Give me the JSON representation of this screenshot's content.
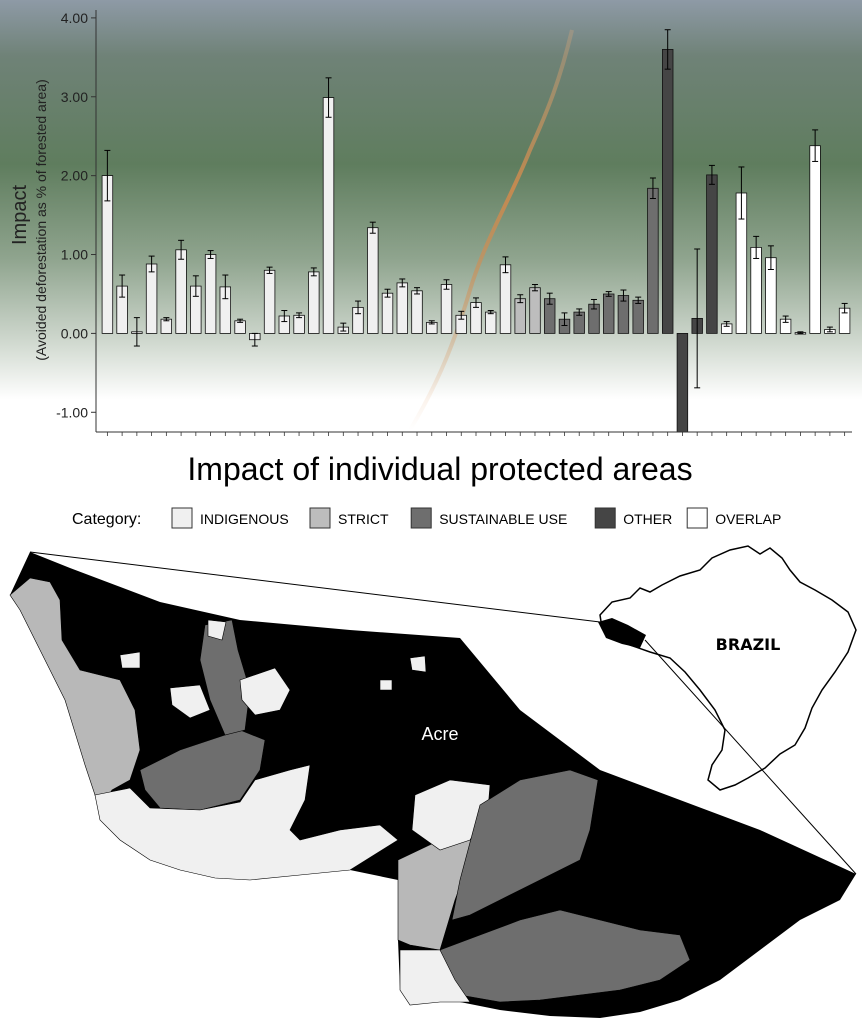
{
  "chart_data": {
    "type": "bar",
    "xlabel": "Impact of individual protected areas",
    "ylabel": "Impact",
    "ylabel_sub": "(Avoided deforestation as % of forested area)",
    "ylim": [
      -1.25,
      4.1
    ],
    "yticks": [
      {
        "value": 4.0,
        "label": "4.00"
      },
      {
        "value": 3.0,
        "label": "3.00"
      },
      {
        "value": 2.0,
        "label": "2.00"
      },
      {
        "value": 1.0,
        "label": "1.00"
      },
      {
        "value": 0.0,
        "label": "0.00"
      },
      {
        "value": -1.0,
        "label": "-1.00"
      }
    ],
    "grid": false,
    "legend_title": "Category:",
    "legend_placement": "bottom",
    "categories": [
      {
        "key": "INDIGENOUS",
        "label": "INDIGENOUS",
        "color": "#f0f0f0"
      },
      {
        "key": "STRICT",
        "label": "STRICT",
        "color": "#bdbdbd"
      },
      {
        "key": "SUSTAINABLE USE",
        "label": "SUSTAINABLE USE",
        "color": "#6e6e6e"
      },
      {
        "key": "OTHER",
        "label": "OTHER",
        "color": "#454545"
      },
      {
        "key": "OVERLAP",
        "label": "OVERLAP",
        "color": "#ffffff"
      }
    ],
    "bars": [
      {
        "value": 2.0,
        "error": 0.32,
        "category": "INDIGENOUS"
      },
      {
        "value": 0.6,
        "error": 0.14,
        "category": "INDIGENOUS"
      },
      {
        "value": 0.02,
        "error": 0.18,
        "category": "INDIGENOUS"
      },
      {
        "value": 0.88,
        "error": 0.1,
        "category": "INDIGENOUS"
      },
      {
        "value": 0.18,
        "error": 0.02,
        "category": "INDIGENOUS"
      },
      {
        "value": 1.06,
        "error": 0.12,
        "category": "INDIGENOUS"
      },
      {
        "value": 0.6,
        "error": 0.13,
        "category": "INDIGENOUS"
      },
      {
        "value": 1.0,
        "error": 0.05,
        "category": "INDIGENOUS"
      },
      {
        "value": 0.59,
        "error": 0.15,
        "category": "INDIGENOUS"
      },
      {
        "value": 0.16,
        "error": 0.02,
        "category": "INDIGENOUS"
      },
      {
        "value": -0.08,
        "error": 0.08,
        "category": "INDIGENOUS"
      },
      {
        "value": 0.8,
        "error": 0.04,
        "category": "INDIGENOUS"
      },
      {
        "value": 0.22,
        "error": 0.07,
        "category": "INDIGENOUS"
      },
      {
        "value": 0.23,
        "error": 0.03,
        "category": "INDIGENOUS"
      },
      {
        "value": 0.78,
        "error": 0.05,
        "category": "INDIGENOUS"
      },
      {
        "value": 2.99,
        "error": 0.25,
        "category": "INDIGENOUS"
      },
      {
        "value": 0.08,
        "error": 0.05,
        "category": "INDIGENOUS"
      },
      {
        "value": 0.33,
        "error": 0.08,
        "category": "INDIGENOUS"
      },
      {
        "value": 1.34,
        "error": 0.07,
        "category": "INDIGENOUS"
      },
      {
        "value": 0.51,
        "error": 0.05,
        "category": "INDIGENOUS"
      },
      {
        "value": 0.64,
        "error": 0.05,
        "category": "INDIGENOUS"
      },
      {
        "value": 0.54,
        "error": 0.04,
        "category": "INDIGENOUS"
      },
      {
        "value": 0.14,
        "error": 0.02,
        "category": "INDIGENOUS"
      },
      {
        "value": 0.62,
        "error": 0.06,
        "category": "INDIGENOUS"
      },
      {
        "value": 0.23,
        "error": 0.05,
        "category": "INDIGENOUS"
      },
      {
        "value": 0.39,
        "error": 0.06,
        "category": "INDIGENOUS"
      },
      {
        "value": 0.27,
        "error": 0.02,
        "category": "INDIGENOUS"
      },
      {
        "value": 0.87,
        "error": 0.1,
        "category": "INDIGENOUS"
      },
      {
        "value": 0.44,
        "error": 0.05,
        "category": "STRICT"
      },
      {
        "value": 0.58,
        "error": 0.04,
        "category": "STRICT"
      },
      {
        "value": 0.44,
        "error": 0.07,
        "category": "SUSTAINABLE USE"
      },
      {
        "value": 0.18,
        "error": 0.08,
        "category": "SUSTAINABLE USE"
      },
      {
        "value": 0.27,
        "error": 0.04,
        "category": "SUSTAINABLE USE"
      },
      {
        "value": 0.37,
        "error": 0.06,
        "category": "SUSTAINABLE USE"
      },
      {
        "value": 0.5,
        "error": 0.03,
        "category": "SUSTAINABLE USE"
      },
      {
        "value": 0.48,
        "error": 0.07,
        "category": "SUSTAINABLE USE"
      },
      {
        "value": 0.42,
        "error": 0.04,
        "category": "SUSTAINABLE USE"
      },
      {
        "value": 1.84,
        "error": 0.13,
        "category": "SUSTAINABLE USE"
      },
      {
        "value": 3.6,
        "error": 0.25,
        "category": "OTHER"
      },
      {
        "value": -1.25,
        "error": 0,
        "category": "OTHER"
      },
      {
        "value": 0.19,
        "error": 0.88,
        "category": "OTHER"
      },
      {
        "value": 2.01,
        "error": 0.12,
        "category": "OTHER"
      },
      {
        "value": 0.12,
        "error": 0.03,
        "category": "OVERLAP"
      },
      {
        "value": 1.78,
        "error": 0.33,
        "category": "OVERLAP"
      },
      {
        "value": 1.09,
        "error": 0.14,
        "category": "OVERLAP"
      },
      {
        "value": 0.96,
        "error": 0.15,
        "category": "OVERLAP"
      },
      {
        "value": 0.18,
        "error": 0.04,
        "category": "OVERLAP"
      },
      {
        "value": 0.01,
        "error": 0.01,
        "category": "OVERLAP"
      },
      {
        "value": 2.38,
        "error": 0.2,
        "category": "OVERLAP"
      },
      {
        "value": 0.05,
        "error": 0.03,
        "category": "OVERLAP"
      },
      {
        "value": 0.32,
        "error": 0.06,
        "category": "OVERLAP"
      }
    ]
  },
  "map": {
    "region_label": "Acre",
    "country_label": "BRAZIL"
  }
}
